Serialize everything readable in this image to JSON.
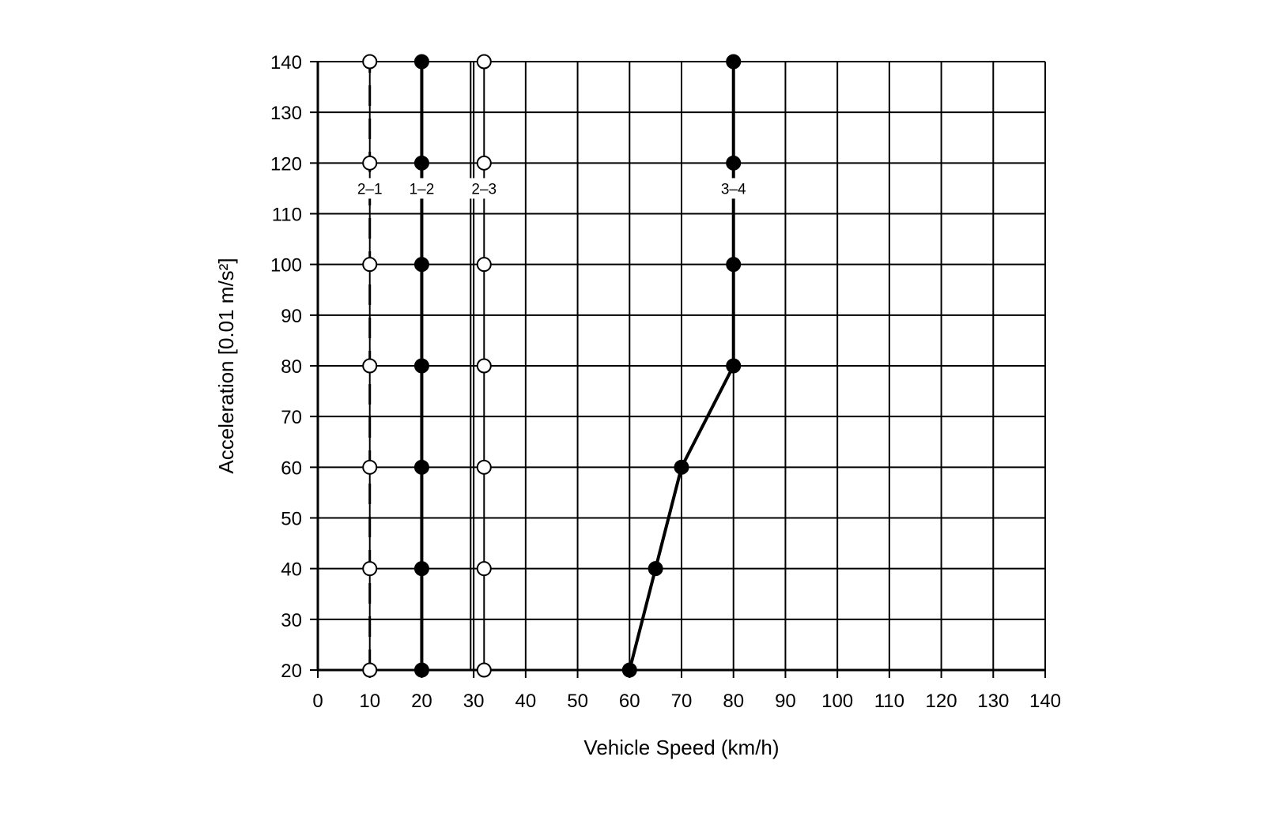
{
  "chart_data": {
    "type": "line",
    "title": "",
    "xlabel": "Vehicle Speed (km/h)",
    "ylabel": "Acceleration [0.01 m/s²]",
    "xlim": [
      0,
      140
    ],
    "ylim": [
      20,
      140
    ],
    "xticks": [
      0,
      10,
      20,
      30,
      40,
      50,
      60,
      70,
      80,
      90,
      100,
      110,
      120,
      130,
      140
    ],
    "yticks": [
      20,
      30,
      40,
      50,
      60,
      70,
      80,
      90,
      100,
      110,
      120,
      130,
      140
    ],
    "xtick_labels": [
      "0",
      "10",
      "20",
      "30",
      "40",
      "50",
      "60",
      "70",
      "80",
      "90",
      "100",
      "110",
      "120",
      "130",
      "140"
    ],
    "ytick_labels": [
      "20",
      "30",
      "40",
      "50",
      "60",
      "70",
      "80",
      "90",
      "100",
      "110",
      "120",
      "130",
      "140"
    ],
    "grid": true,
    "legend": "none",
    "line_color": "#000000",
    "series": [
      {
        "name": "2–1",
        "line_style": "dashed",
        "marker": "open-circle",
        "x": [
          10,
          10,
          10,
          10,
          10,
          10,
          10
        ],
        "y": [
          20,
          40,
          60,
          80,
          100,
          120,
          140
        ]
      },
      {
        "name": "1–2",
        "line_style": "solid",
        "marker": "filled-circle",
        "x": [
          20,
          20,
          20,
          20,
          20,
          20,
          20
        ],
        "y": [
          20,
          40,
          60,
          80,
          100,
          120,
          140
        ]
      },
      {
        "name": "2–3",
        "line_style": "double",
        "marker": "open-circle",
        "x": [
          32,
          32,
          32,
          32,
          32,
          32,
          32
        ],
        "y": [
          20,
          40,
          60,
          80,
          100,
          120,
          140
        ]
      },
      {
        "name": "3–4",
        "line_style": "solid",
        "marker": "filled-circle",
        "x": [
          60,
          65,
          70,
          80,
          80,
          80,
          80
        ],
        "y": [
          20,
          40,
          60,
          80,
          100,
          120,
          140
        ]
      }
    ]
  }
}
